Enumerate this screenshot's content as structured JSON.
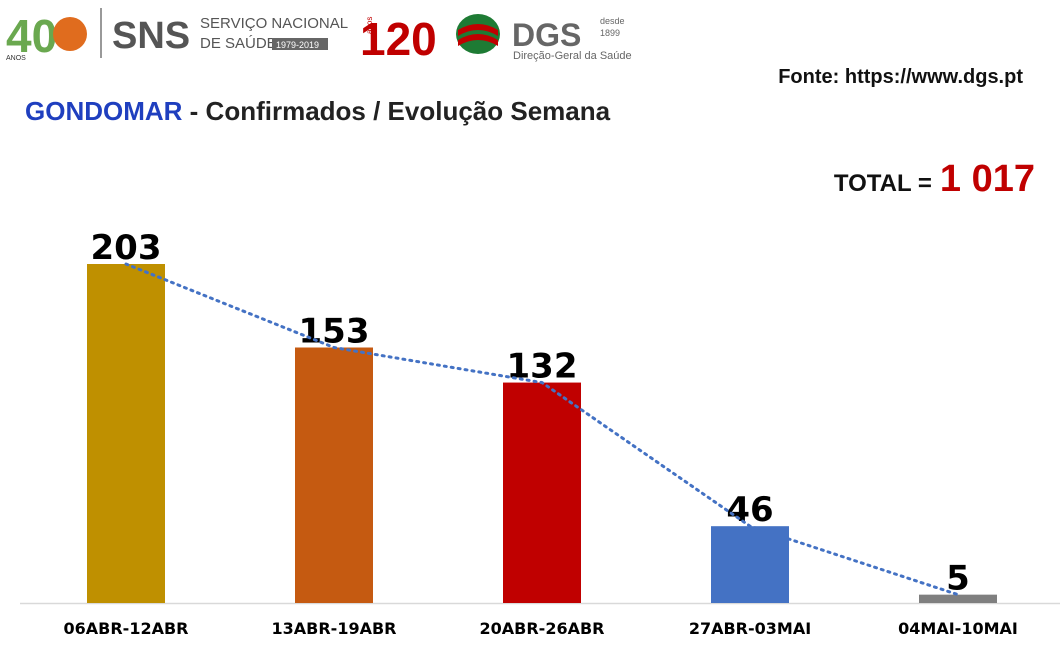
{
  "header": {
    "logo_40": "40",
    "logo_40_sub": "ANOS",
    "sns": "SNS",
    "sns_line1": "SERVIÇO NACIONAL",
    "sns_line2": "DE SAÚDE",
    "sns_years": "1979-2019",
    "anos_120": "120",
    "anos_120_sub": "anos",
    "dgs": "DGS",
    "dgs_since1": "desde",
    "dgs_since2": "1899",
    "dgs_name": "Direção-Geral da Saúde"
  },
  "source": "Fonte: https://www.dgs.pt",
  "title": {
    "place": "GONDOMAR",
    "rest": " - Confirmados / Evolução Semana"
  },
  "total": {
    "label": "TOTAL =",
    "value": "1 017"
  },
  "colors": {
    "title_place": "#1f3fbf",
    "total_value": "#c00000",
    "trendline": "#4472c4"
  },
  "chart_data": {
    "type": "bar",
    "categories": [
      "06ABR-12ABR",
      "13ABR-19ABR",
      "20ABR-26ABR",
      "27ABR-03MAI",
      "04MAI-10MAI"
    ],
    "values": [
      203,
      153,
      132,
      46,
      5
    ],
    "data_labels": [
      "203",
      "153",
      "132",
      "46",
      "5"
    ],
    "bar_colors": [
      "#bf9000",
      "#c55a11",
      "#c00000",
      "#4472c4",
      "#7f7f7f"
    ],
    "trendline": "linear (dotted)",
    "ylim": [
      0,
      220
    ],
    "title": "",
    "xlabel": "",
    "ylabel": "",
    "grid": false,
    "legend": "none"
  }
}
